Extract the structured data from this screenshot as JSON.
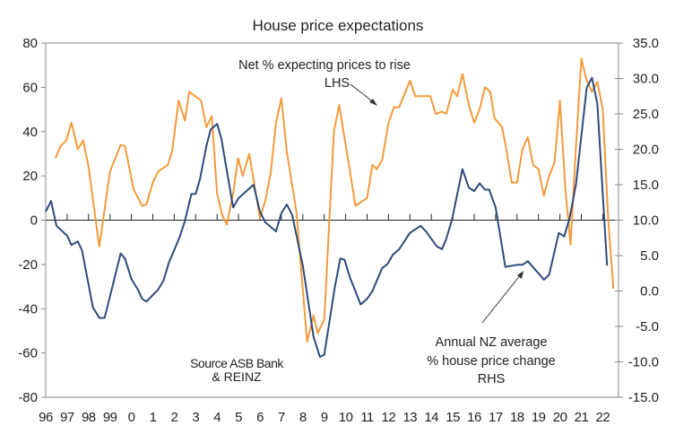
{
  "chart_data": {
    "type": "line",
    "title": "House price expectations",
    "x_tick_labels": [
      "96",
      "97",
      "98",
      "99",
      "0",
      "1",
      "2",
      "3",
      "4",
      "5",
      "6",
      "7",
      "8",
      "9",
      "10",
      "11",
      "12",
      "13",
      "14",
      "15",
      "16",
      "17",
      "18",
      "19",
      "20",
      "21",
      "22"
    ],
    "x_range": [
      1996,
      2022.8
    ],
    "y_left": {
      "range": [
        -80,
        80
      ],
      "ticks": [
        "80",
        "60",
        "40",
        "20",
        "0",
        "-20",
        "-40",
        "-60",
        "-80"
      ]
    },
    "y_right": {
      "range": [
        -15,
        35
      ],
      "ticks": [
        "35.0",
        "30.0",
        "25.0",
        "20.0",
        "15.0",
        "10.0",
        "5.0",
        "0.0",
        "-5.0",
        "-10.0",
        "-15.0"
      ]
    },
    "grid": false,
    "series": [
      {
        "key": "expectations",
        "axis": "left",
        "color": "#F39A3C",
        "points": [
          [
            1996.45,
            28
          ],
          [
            1996.7,
            33.5
          ],
          [
            1996.96,
            36
          ],
          [
            1997.2,
            44
          ],
          [
            1997.5,
            32
          ],
          [
            1997.75,
            36
          ],
          [
            1998.0,
            24
          ],
          [
            1998.5,
            -12
          ],
          [
            1999.0,
            22
          ],
          [
            1999.5,
            34
          ],
          [
            1999.7,
            33.5
          ],
          [
            2000.1,
            14
          ],
          [
            2000.5,
            6.5
          ],
          [
            2000.7,
            7
          ],
          [
            2001.0,
            17
          ],
          [
            2001.25,
            22
          ],
          [
            2001.7,
            25
          ],
          [
            2001.9,
            31
          ],
          [
            2002.2,
            54
          ],
          [
            2002.5,
            45
          ],
          [
            2002.7,
            58
          ],
          [
            2003.25,
            54
          ],
          [
            2003.5,
            42
          ],
          [
            2003.75,
            47
          ],
          [
            2004.0,
            12
          ],
          [
            2004.25,
            2
          ],
          [
            2004.45,
            -2
          ],
          [
            2004.75,
            12
          ],
          [
            2004.98,
            28
          ],
          [
            2005.2,
            20
          ],
          [
            2005.5,
            30
          ],
          [
            2006.0,
            1
          ],
          [
            2006.25,
            9
          ],
          [
            2006.5,
            21
          ],
          [
            2006.75,
            44
          ],
          [
            2007.0,
            55
          ],
          [
            2007.25,
            31
          ],
          [
            2007.7,
            4
          ],
          [
            2008.2,
            -55
          ],
          [
            2008.5,
            -43
          ],
          [
            2008.7,
            -51
          ],
          [
            2009.0,
            -45
          ],
          [
            2009.45,
            40
          ],
          [
            2009.7,
            52
          ],
          [
            2010.46,
            6.5
          ],
          [
            2011.0,
            10
          ],
          [
            2011.25,
            25
          ],
          [
            2011.45,
            23
          ],
          [
            2011.7,
            27
          ],
          [
            2012.0,
            44
          ],
          [
            2012.25,
            51
          ],
          [
            2012.5,
            51
          ],
          [
            2013.0,
            63
          ],
          [
            2013.25,
            56
          ],
          [
            2013.95,
            56
          ],
          [
            2014.2,
            48
          ],
          [
            2014.5,
            49
          ],
          [
            2014.7,
            48
          ],
          [
            2015.0,
            59
          ],
          [
            2015.2,
            56
          ],
          [
            2015.45,
            66
          ],
          [
            2015.75,
            52
          ],
          [
            2016.0,
            44
          ],
          [
            2016.25,
            50
          ],
          [
            2016.5,
            60
          ],
          [
            2016.75,
            58
          ],
          [
            2016.95,
            46
          ],
          [
            2017.3,
            42
          ],
          [
            2017.5,
            32
          ],
          [
            2017.75,
            17
          ],
          [
            2018.0,
            17
          ],
          [
            2018.25,
            32
          ],
          [
            2018.5,
            37.5
          ],
          [
            2018.75,
            25
          ],
          [
            2019.0,
            23
          ],
          [
            2019.25,
            11
          ],
          [
            2019.5,
            20
          ],
          [
            2019.75,
            26
          ],
          [
            2020.0,
            54
          ],
          [
            2020.25,
            14.5
          ],
          [
            2020.5,
            -11
          ],
          [
            2020.75,
            33
          ],
          [
            2021.0,
            73
          ],
          [
            2021.25,
            63
          ],
          [
            2021.5,
            58
          ],
          [
            2021.75,
            62.5
          ],
          [
            2022.0,
            50
          ],
          [
            2022.25,
            1
          ],
          [
            2022.5,
            -31
          ]
        ]
      },
      {
        "key": "house_price_change",
        "axis": "right",
        "color": "#2E4A7A",
        "points": [
          [
            1996.0,
            11.2
          ],
          [
            1996.25,
            12.7
          ],
          [
            1996.5,
            9.2
          ],
          [
            1997.0,
            7.8
          ],
          [
            1997.2,
            6.5
          ],
          [
            1997.5,
            7
          ],
          [
            1997.7,
            5.7
          ],
          [
            1998.2,
            -2.3
          ],
          [
            1998.5,
            -3.8
          ],
          [
            1998.75,
            -3.8
          ],
          [
            1999.5,
            5.3
          ],
          [
            1999.7,
            4.6
          ],
          [
            2000.0,
            1.7
          ],
          [
            2000.3,
            0.2
          ],
          [
            2000.5,
            -1.1
          ],
          [
            2000.7,
            -1.5
          ],
          [
            2001.25,
            0.2
          ],
          [
            2001.5,
            1.5
          ],
          [
            2001.75,
            4
          ],
          [
            2002.25,
            7.6
          ],
          [
            2002.5,
            9.9
          ],
          [
            2002.8,
            13.7
          ],
          [
            2003.0,
            13.7
          ],
          [
            2003.2,
            15.8
          ],
          [
            2003.5,
            20.5
          ],
          [
            2003.7,
            22.8
          ],
          [
            2004.0,
            23.6
          ],
          [
            2004.2,
            21.5
          ],
          [
            2004.45,
            17
          ],
          [
            2004.75,
            11.8
          ],
          [
            2005.0,
            13.1
          ],
          [
            2005.7,
            15
          ],
          [
            2006.0,
            11.2
          ],
          [
            2006.25,
            9.7
          ],
          [
            2006.75,
            8.4
          ],
          [
            2007.0,
            11
          ],
          [
            2007.25,
            12.2
          ],
          [
            2007.5,
            10.8
          ],
          [
            2008.0,
            3.6
          ],
          [
            2008.5,
            -6.5
          ],
          [
            2008.8,
            -9.3
          ],
          [
            2009.0,
            -9
          ],
          [
            2009.5,
            0.6
          ],
          [
            2009.75,
            4.6
          ],
          [
            2009.95,
            4.4
          ],
          [
            2010.2,
            1.9
          ],
          [
            2010.7,
            -1.9
          ],
          [
            2011.0,
            -1.1
          ],
          [
            2011.25,
            0
          ],
          [
            2011.7,
            3.2
          ],
          [
            2011.95,
            3.8
          ],
          [
            2012.2,
            5.1
          ],
          [
            2012.5,
            5.9
          ],
          [
            2013.0,
            8.2
          ],
          [
            2013.5,
            9.2
          ],
          [
            2013.75,
            8.4
          ],
          [
            2014.25,
            6.3
          ],
          [
            2014.5,
            5.9
          ],
          [
            2014.7,
            7.4
          ],
          [
            2014.95,
            9.9
          ],
          [
            2015.45,
            17.2
          ],
          [
            2015.75,
            14.6
          ],
          [
            2016.0,
            14.1
          ],
          [
            2016.25,
            15.2
          ],
          [
            2016.5,
            14.3
          ],
          [
            2016.7,
            14.3
          ],
          [
            2017.0,
            11.8
          ],
          [
            2017.45,
            3.4
          ],
          [
            2018.0,
            3.7
          ],
          [
            2018.25,
            3.7
          ],
          [
            2018.5,
            4.2
          ],
          [
            2019.0,
            2.5
          ],
          [
            2019.25,
            1.6
          ],
          [
            2019.5,
            2.3
          ],
          [
            2019.95,
            8.2
          ],
          [
            2020.2,
            7.7
          ],
          [
            2020.45,
            10.3
          ],
          [
            2020.75,
            15
          ],
          [
            2021.25,
            28.7
          ],
          [
            2021.5,
            30.1
          ],
          [
            2021.75,
            26.4
          ],
          [
            2022.2,
            3.6
          ]
        ]
      }
    ],
    "annotations": {
      "expectations_label": [
        "Net % expecting prices to rise",
        "LHS"
      ],
      "source": [
        "Source ASB Bank",
        "& REINZ"
      ],
      "price_label": [
        "Annual NZ average",
        "% house price change",
        "RHS"
      ]
    }
  }
}
